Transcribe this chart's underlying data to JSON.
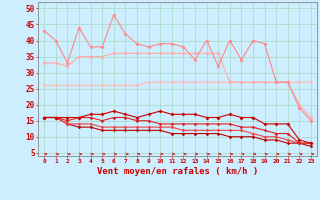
{
  "xlabel": "Vent moyen/en rafales ( km/h )",
  "background_color": "#cceeff",
  "grid_color": "#aaddcc",
  "x": [
    0,
    1,
    2,
    3,
    4,
    5,
    6,
    7,
    8,
    9,
    10,
    11,
    12,
    13,
    14,
    15,
    16,
    17,
    18,
    19,
    20,
    21,
    22,
    23
  ],
  "ylim": [
    4,
    52
  ],
  "yticks": [
    5,
    10,
    15,
    20,
    25,
    30,
    35,
    40,
    45,
    50
  ],
  "line1": [
    43,
    40,
    33,
    44,
    38,
    38,
    48,
    42,
    39,
    38,
    39,
    39,
    38,
    34,
    40,
    32,
    40,
    34,
    40,
    39,
    27,
    27,
    19,
    15
  ],
  "line2": [
    33,
    33,
    32,
    35,
    35,
    35,
    36,
    36,
    36,
    36,
    36,
    36,
    36,
    36,
    36,
    36,
    27,
    27,
    27,
    27,
    27,
    27,
    20,
    16
  ],
  "line3": [
    26,
    26,
    26,
    26,
    26,
    26,
    26,
    26,
    26,
    27,
    27,
    27,
    27,
    27,
    27,
    27,
    27,
    27,
    27,
    27,
    27,
    27,
    27,
    27
  ],
  "line4": [
    16,
    16,
    16,
    16,
    17,
    17,
    18,
    17,
    16,
    17,
    18,
    17,
    17,
    17,
    16,
    16,
    17,
    16,
    16,
    14,
    14,
    14,
    9,
    8
  ],
  "line5": [
    16,
    16,
    15,
    16,
    16,
    15,
    16,
    16,
    15,
    15,
    14,
    14,
    14,
    14,
    14,
    14,
    14,
    13,
    13,
    12,
    11,
    11,
    8,
    8
  ],
  "line6": [
    16,
    16,
    14,
    14,
    14,
    13,
    13,
    13,
    13,
    13,
    13,
    13,
    12,
    12,
    12,
    12,
    12,
    12,
    11,
    10,
    10,
    9,
    8,
    8
  ],
  "line7": [
    16,
    16,
    14,
    13,
    13,
    12,
    12,
    12,
    12,
    12,
    12,
    11,
    11,
    11,
    11,
    11,
    10,
    10,
    10,
    9,
    9,
    8,
    8,
    7
  ],
  "color_line1": "#ff8888",
  "color_line2": "#ffaaaa",
  "color_line3": "#ffbbbb",
  "color_line4": "#cc0000",
  "color_line5": "#dd2222",
  "color_line6": "#ee4444",
  "color_line7": "#bb0000",
  "arrow_color": "#cc0000",
  "tick_color": "#cc0000",
  "spine_color": "#888888"
}
